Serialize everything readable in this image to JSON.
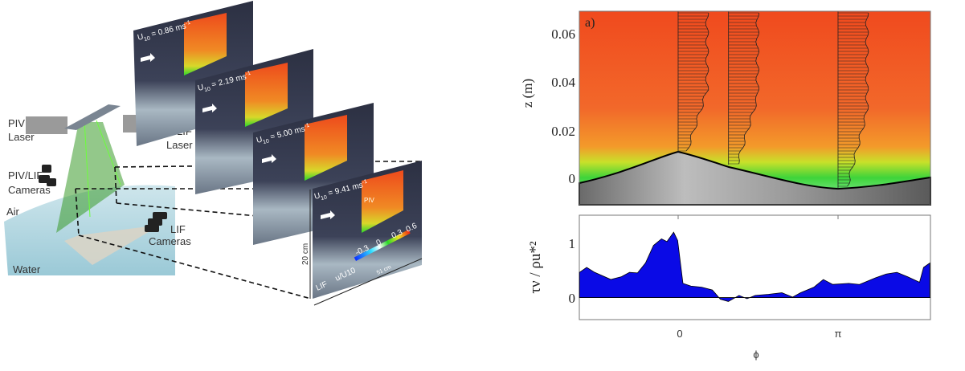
{
  "diagram": {
    "labels": {
      "piv_laser": [
        "PIV",
        "Laser"
      ],
      "lif_laser": [
        "LIF",
        "Laser"
      ],
      "piv_lif_cameras": [
        "PIV/LIF",
        "Cameras"
      ],
      "lif_cameras": [
        "LIF",
        "Cameras"
      ],
      "air": "Air",
      "water": "Water"
    },
    "panels": [
      {
        "u": "U",
        "sub": "10",
        "eq": " = 0.86 ms",
        "sup": "-1"
      },
      {
        "u": "U",
        "sub": "10",
        "eq": " = 2.19 ms",
        "sup": "-1"
      },
      {
        "u": "U",
        "sub": "10",
        "eq": " = 5.00 ms",
        "sup": "-1"
      },
      {
        "u": "U",
        "sub": "10",
        "eq": " = 9.41 ms",
        "sup": "-1"
      }
    ],
    "panel4": {
      "piv": "PIV",
      "lif": "LIF",
      "height": "20 cm",
      "width": "51 cm",
      "colorbar_label": "u/U10",
      "colorbar_ticks": [
        "-0.3",
        "0",
        "0.3",
        "0.6"
      ]
    }
  },
  "chart_data": [
    {
      "type": "heatmap",
      "panel_label": "a)",
      "ylabel": "z (m)",
      "yticks": [
        "0.06",
        "0.04",
        "0.02",
        "0"
      ],
      "ylim": [
        -0.01,
        0.069
      ],
      "xlim_over_pi": [
        -0.618,
        1.578
      ],
      "profile_positions_over_pi": [
        0,
        0.315,
        1
      ]
    },
    {
      "type": "area",
      "ylabel": "τν / ρu*²",
      "xlabel": "ϕ",
      "xticks": [
        "0",
        "π"
      ],
      "yticks": [
        "1",
        "0"
      ],
      "ylim": [
        -0.4,
        1.5
      ],
      "xlim_over_pi": [
        -0.618,
        1.578
      ],
      "fill_color": "#0a0ae6",
      "x_over_pi": [
        -0.617,
        -0.572,
        -0.522,
        -0.421,
        -0.355,
        -0.304,
        -0.254,
        -0.204,
        -0.154,
        -0.104,
        -0.07,
        -0.028,
        -0.003,
        0.03,
        0.08,
        0.147,
        0.214,
        0.264,
        0.314,
        0.381,
        0.431,
        0.482,
        0.565,
        0.649,
        0.716,
        0.766,
        0.849,
        0.908,
        0.967,
        1.067,
        1.134,
        1.234,
        1.301,
        1.368,
        1.435,
        1.51,
        1.535,
        1.574
      ],
      "y": [
        0.46,
        0.55,
        0.46,
        0.33,
        0.38,
        0.46,
        0.45,
        0.63,
        0.95,
        1.07,
        1.02,
        1.19,
        1.04,
        0.26,
        0.21,
        0.19,
        0.14,
        -0.03,
        -0.07,
        0.04,
        -0.02,
        0.04,
        0.06,
        0.09,
        0.01,
        0.09,
        0.19,
        0.33,
        0.24,
        0.26,
        0.24,
        0.36,
        0.43,
        0.46,
        0.38,
        0.28,
        0.55,
        0.63
      ]
    }
  ]
}
